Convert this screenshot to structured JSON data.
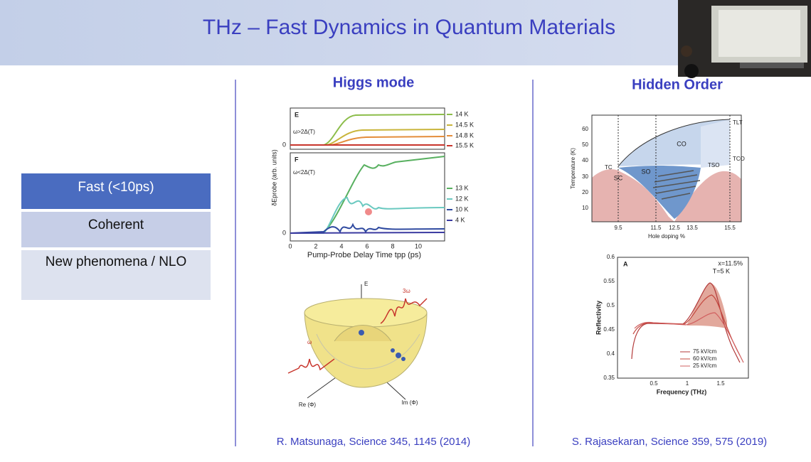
{
  "header": {
    "title": "THz – Fast Dynamics in Quantum Materials"
  },
  "sidebar": {
    "items": [
      "Fast (<10ps)",
      "Coherent",
      "New phenomena / NLO"
    ]
  },
  "left_panel": {
    "heading": "Higgs mode",
    "figure_top": {
      "panel_e": {
        "label": "E",
        "condition": "ω>2Δ(T)",
        "legend": [
          "14 K",
          "14.5 K",
          "14.8 K",
          "15.5 K"
        ]
      },
      "panel_f": {
        "label": "F",
        "condition": "ω<2Δ(T)",
        "legend": [
          "13 K",
          "12 K",
          "10 K",
          "4 K"
        ]
      },
      "y_label": "δEprobe (arb. units)",
      "y_ticks": [
        "0",
        "0"
      ],
      "x_ticks": [
        "0",
        "2",
        "4",
        "6",
        "8",
        "10"
      ],
      "x_label": "Pump-Probe Delay Time tpp (ps)"
    },
    "figure_bottom": {
      "labels": [
        "E",
        "3ω",
        "ω",
        "Re (Φ)",
        "Im (Φ)"
      ]
    },
    "citation": "R. Matsunaga, Science 345, 1145 (2014)"
  },
  "right_panel": {
    "heading": "Hidden Order",
    "phase_diagram": {
      "y_label": "Temperature (K)",
      "y_ticks": [
        "60",
        "50",
        "40",
        "30",
        "20",
        "10"
      ],
      "x_ticks": [
        "9.5",
        "11.5",
        "12.5",
        "13.5",
        "15.5"
      ],
      "x_label": "Hole doping %",
      "regions": [
        "CO",
        "SO",
        "SC"
      ],
      "lines": [
        "TLT",
        "TC",
        "TSO",
        "TCO"
      ]
    },
    "reflectivity": {
      "label": "A",
      "conditions": [
        "x=11.5%",
        "T=5 K"
      ],
      "y_label": "Reflectivity",
      "y_ticks": [
        "0.6",
        "0.55",
        "0.5",
        "0.45",
        "0.4",
        "0.35"
      ],
      "x_ticks": [
        "0.5",
        "1",
        "1.5"
      ],
      "x_label": "Frequency (THz)",
      "legend": [
        "75 kV/cm",
        "60 kV/cm",
        "25 kV/cm"
      ]
    },
    "citation": "S. Rajasekaran, Science 359, 575 (2019)"
  }
}
